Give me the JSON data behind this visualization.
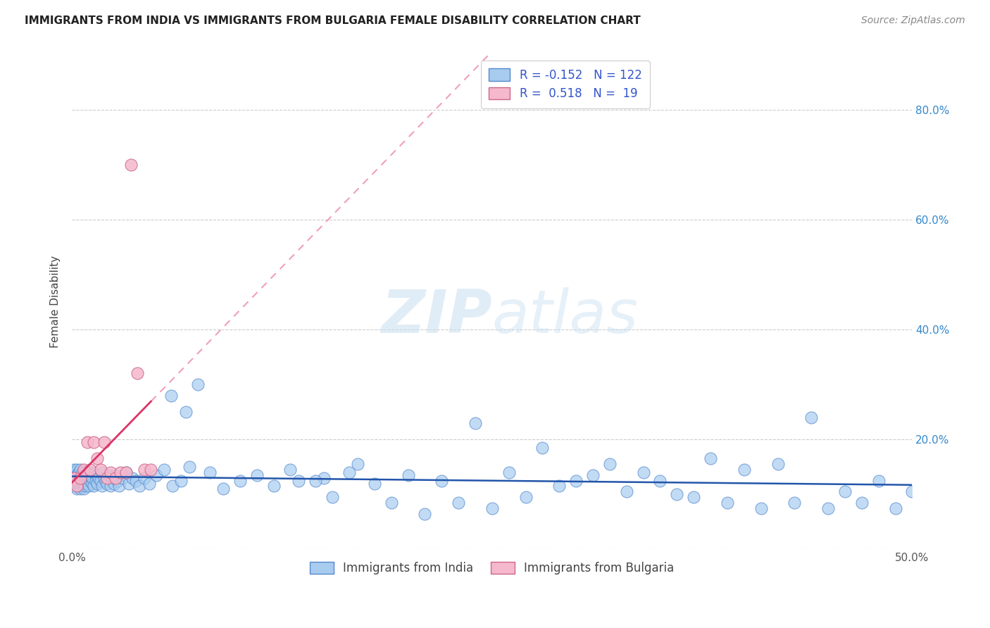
{
  "title": "IMMIGRANTS FROM INDIA VS IMMIGRANTS FROM BULGARIA FEMALE DISABILITY CORRELATION CHART",
  "source": "Source: ZipAtlas.com",
  "ylabel": "Female Disability",
  "xlim": [
    0.0,
    0.5
  ],
  "ylim": [
    0.0,
    0.9
  ],
  "xtick_positions": [
    0.0,
    0.1,
    0.2,
    0.3,
    0.4,
    0.5
  ],
  "xtick_labels": [
    "0.0%",
    "",
    "",
    "",
    "",
    "50.0%"
  ],
  "ytick_positions": [
    0.0,
    0.2,
    0.4,
    0.6,
    0.8
  ],
  "ytick_labels_right": [
    "",
    "20.0%",
    "40.0%",
    "60.0%",
    "80.0%"
  ],
  "india_color": "#a8ccf0",
  "india_edge_color": "#5588cc",
  "india_line_color": "#2255aa",
  "bulgaria_color": "#f5b8cc",
  "bulgaria_edge_color": "#cc6688",
  "bulgaria_line_color": "#dd3366",
  "bulgaria_dashed_color": "#f0a0b8",
  "india_R": -0.152,
  "india_N": 122,
  "bulgaria_R": 0.518,
  "bulgaria_N": 19,
  "legend_label_india": "Immigrants from India",
  "legend_label_bulgaria": "Immigrants from Bulgaria",
  "watermark_zip": "ZIP",
  "watermark_atlas": "atlas",
  "R_N_text_color": "#3355cc",
  "title_fontsize": 11,
  "axis_fontsize": 11,
  "legend_fontsize": 12,
  "india_x": [
    0.001,
    0.001,
    0.001,
    0.002,
    0.002,
    0.002,
    0.002,
    0.003,
    0.003,
    0.003,
    0.003,
    0.003,
    0.004,
    0.004,
    0.004,
    0.004,
    0.005,
    0.005,
    0.005,
    0.005,
    0.005,
    0.006,
    0.006,
    0.006,
    0.006,
    0.007,
    0.007,
    0.007,
    0.007,
    0.008,
    0.008,
    0.008,
    0.009,
    0.009,
    0.009,
    0.01,
    0.01,
    0.01,
    0.011,
    0.011,
    0.012,
    0.012,
    0.013,
    0.013,
    0.014,
    0.015,
    0.015,
    0.016,
    0.017,
    0.018,
    0.018,
    0.019,
    0.02,
    0.021,
    0.022,
    0.023,
    0.024,
    0.025,
    0.026,
    0.027,
    0.028,
    0.03,
    0.032,
    0.034,
    0.036,
    0.038,
    0.04,
    0.043,
    0.046,
    0.05,
    0.055,
    0.06,
    0.065,
    0.07,
    0.075,
    0.082,
    0.09,
    0.1,
    0.11,
    0.12,
    0.135,
    0.15,
    0.165,
    0.18,
    0.2,
    0.22,
    0.24,
    0.26,
    0.28,
    0.3,
    0.32,
    0.34,
    0.36,
    0.38,
    0.4,
    0.42,
    0.44,
    0.46,
    0.48,
    0.5,
    0.13,
    0.145,
    0.155,
    0.17,
    0.19,
    0.21,
    0.23,
    0.25,
    0.27,
    0.29,
    0.31,
    0.33,
    0.35,
    0.37,
    0.39,
    0.41,
    0.43,
    0.45,
    0.47,
    0.49,
    0.059,
    0.068
  ],
  "india_y": [
    0.13,
    0.145,
    0.115,
    0.125,
    0.14,
    0.12,
    0.135,
    0.11,
    0.13,
    0.145,
    0.12,
    0.135,
    0.115,
    0.13,
    0.14,
    0.12,
    0.125,
    0.135,
    0.11,
    0.13,
    0.145,
    0.12,
    0.13,
    0.115,
    0.14,
    0.11,
    0.125,
    0.135,
    0.12,
    0.13,
    0.14,
    0.115,
    0.125,
    0.135,
    0.12,
    0.13,
    0.115,
    0.14,
    0.125,
    0.135,
    0.12,
    0.13,
    0.115,
    0.14,
    0.125,
    0.135,
    0.12,
    0.13,
    0.125,
    0.115,
    0.14,
    0.13,
    0.125,
    0.12,
    0.135,
    0.115,
    0.13,
    0.12,
    0.135,
    0.125,
    0.115,
    0.13,
    0.14,
    0.12,
    0.13,
    0.125,
    0.115,
    0.13,
    0.12,
    0.135,
    0.145,
    0.115,
    0.125,
    0.15,
    0.3,
    0.14,
    0.11,
    0.125,
    0.135,
    0.115,
    0.125,
    0.13,
    0.14,
    0.12,
    0.135,
    0.125,
    0.23,
    0.14,
    0.185,
    0.125,
    0.155,
    0.14,
    0.1,
    0.165,
    0.145,
    0.155,
    0.24,
    0.105,
    0.125,
    0.105,
    0.145,
    0.125,
    0.095,
    0.155,
    0.085,
    0.065,
    0.085,
    0.075,
    0.095,
    0.115,
    0.135,
    0.105,
    0.125,
    0.095,
    0.085,
    0.075,
    0.085,
    0.075,
    0.085,
    0.075,
    0.28,
    0.25
  ],
  "bulgaria_x": [
    0.001,
    0.003,
    0.005,
    0.007,
    0.009,
    0.011,
    0.013,
    0.015,
    0.017,
    0.019,
    0.021,
    0.023,
    0.026,
    0.029,
    0.032,
    0.035,
    0.039,
    0.043,
    0.047
  ],
  "bulgaria_y": [
    0.13,
    0.115,
    0.13,
    0.145,
    0.195,
    0.145,
    0.195,
    0.165,
    0.145,
    0.195,
    0.13,
    0.14,
    0.13,
    0.14,
    0.14,
    0.7,
    0.32,
    0.145,
    0.145
  ]
}
